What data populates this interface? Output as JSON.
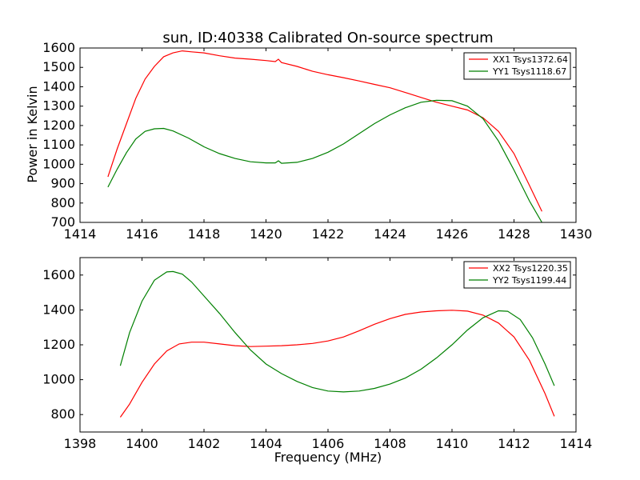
{
  "chart_data": [
    {
      "type": "line",
      "title": "sun, ID:40338 Calibrated On-source spectrum",
      "xlabel": "",
      "ylabel": "Power in Kelvin",
      "xlim": [
        1414,
        1430
      ],
      "ylim": [
        700,
        1600
      ],
      "xticks": [
        "1414",
        "1416",
        "1418",
        "1420",
        "1422",
        "1424",
        "1426",
        "1428",
        "1430"
      ],
      "yticks": [
        "700",
        "800",
        "900",
        "1000",
        "1100",
        "1200",
        "1300",
        "1400",
        "1500",
        "1600"
      ],
      "grid": false,
      "legend_position": "top-right",
      "series": [
        {
          "name": "XX1 Tsys1372.64",
          "color": "#ff0000",
          "x": [
            1414.9,
            1415.2,
            1415.5,
            1415.8,
            1416.1,
            1416.4,
            1416.7,
            1417.0,
            1417.3,
            1417.6,
            1418.0,
            1418.5,
            1419.0,
            1419.5,
            1420.0,
            1420.3,
            1420.4,
            1420.5,
            1421.0,
            1421.5,
            1422.0,
            1422.5,
            1423.0,
            1423.5,
            1424.0,
            1424.5,
            1425.0,
            1425.5,
            1426.0,
            1426.5,
            1427.0,
            1427.5,
            1428.0,
            1428.5,
            1428.9
          ],
          "y": [
            935,
            1080,
            1210,
            1340,
            1440,
            1505,
            1555,
            1575,
            1585,
            1580,
            1575,
            1560,
            1548,
            1542,
            1535,
            1530,
            1542,
            1525,
            1505,
            1480,
            1462,
            1447,
            1430,
            1412,
            1395,
            1370,
            1345,
            1320,
            1300,
            1280,
            1240,
            1170,
            1055,
            890,
            757
          ]
        },
        {
          "name": "YY1 Tsys1118.67",
          "color": "#008000",
          "x": [
            1414.9,
            1415.2,
            1415.5,
            1415.8,
            1416.1,
            1416.4,
            1416.7,
            1417.0,
            1417.5,
            1418.0,
            1418.5,
            1419.0,
            1419.5,
            1420.0,
            1420.3,
            1420.4,
            1420.5,
            1421.0,
            1421.5,
            1422.0,
            1422.5,
            1423.0,
            1423.5,
            1424.0,
            1424.5,
            1425.0,
            1425.5,
            1426.0,
            1426.5,
            1427.0,
            1427.5,
            1428.0,
            1428.5,
            1428.9
          ],
          "y": [
            882,
            975,
            1060,
            1130,
            1170,
            1183,
            1185,
            1172,
            1135,
            1090,
            1055,
            1030,
            1013,
            1007,
            1007,
            1018,
            1005,
            1010,
            1030,
            1062,
            1105,
            1158,
            1210,
            1255,
            1292,
            1320,
            1330,
            1328,
            1300,
            1235,
            1120,
            970,
            810,
            700
          ]
        }
      ]
    },
    {
      "type": "line",
      "title": "",
      "xlabel": "Frequency (MHz)",
      "ylabel": "",
      "xlim": [
        1398,
        1414
      ],
      "ylim": [
        700,
        1700
      ],
      "xticks": [
        "1398",
        "1400",
        "1402",
        "1404",
        "1406",
        "1408",
        "1410",
        "1412",
        "1414"
      ],
      "yticks": [
        "800",
        "1000",
        "1200",
        "1400",
        "1600"
      ],
      "grid": false,
      "legend_position": "top-right",
      "series": [
        {
          "name": "XX2 Tsys1220.35",
          "color": "#ff0000",
          "x": [
            1399.3,
            1399.6,
            1400.0,
            1400.4,
            1400.8,
            1401.2,
            1401.6,
            1402.0,
            1402.5,
            1403.0,
            1403.5,
            1404.0,
            1404.5,
            1405.0,
            1405.5,
            1406.0,
            1406.5,
            1407.0,
            1407.5,
            1408.0,
            1408.5,
            1409.0,
            1409.5,
            1410.0,
            1410.5,
            1411.0,
            1411.5,
            1412.0,
            1412.5,
            1413.0,
            1413.3
          ],
          "y": [
            785,
            860,
            985,
            1090,
            1165,
            1205,
            1215,
            1215,
            1205,
            1195,
            1190,
            1192,
            1195,
            1200,
            1208,
            1222,
            1245,
            1280,
            1318,
            1350,
            1375,
            1388,
            1395,
            1398,
            1393,
            1370,
            1325,
            1245,
            1110,
            920,
            790
          ]
        },
        {
          "name": "YY2 Tsys1199.44",
          "color": "#008000",
          "x": [
            1399.3,
            1399.6,
            1400.0,
            1400.4,
            1400.8,
            1401.0,
            1401.3,
            1401.6,
            1402.0,
            1402.5,
            1403.0,
            1403.5,
            1404.0,
            1404.5,
            1405.0,
            1405.5,
            1406.0,
            1406.5,
            1407.0,
            1407.5,
            1408.0,
            1408.5,
            1409.0,
            1409.5,
            1410.0,
            1410.5,
            1411.0,
            1411.5,
            1411.8,
            1412.2,
            1412.6,
            1413.0,
            1413.3
          ],
          "y": [
            1080,
            1270,
            1450,
            1570,
            1618,
            1620,
            1605,
            1560,
            1480,
            1380,
            1270,
            1170,
            1090,
            1035,
            990,
            955,
            935,
            930,
            935,
            950,
            975,
            1010,
            1060,
            1125,
            1200,
            1285,
            1355,
            1395,
            1392,
            1345,
            1240,
            1090,
            965
          ]
        }
      ]
    }
  ]
}
